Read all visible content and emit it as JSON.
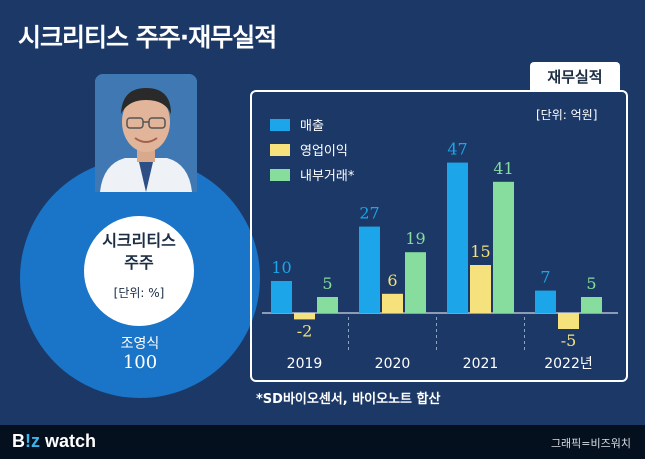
{
  "header": {
    "title": "시크리티스 주주·재무실적"
  },
  "shareholder": {
    "circle_title_line1": "시크리티스",
    "circle_title_line2": "주주",
    "circle_unit": "[단위: %]",
    "name": "조영식",
    "value": "100",
    "value_num": 100
  },
  "panel": {
    "tab_label": "재무실적",
    "unit_note": "[단위: 억원]"
  },
  "footnote": "*SD바이오센서, 바이오노트 합산",
  "footer": {
    "brand_b": "B",
    "brand_z": "!z",
    "brand_rest": " watch",
    "credit": "그래픽=비즈워치"
  },
  "colors": {
    "background": "#1c3867",
    "sales": "#1ca5e8",
    "op": "#f5e27c",
    "internal": "#86dd9d",
    "circle": "#1a74c7"
  },
  "chart_data": {
    "type": "bar",
    "title": "재무실적",
    "unit": "[단위: 억원]",
    "categories": [
      "2019",
      "2020",
      "2021",
      "2022년"
    ],
    "series": [
      {
        "name": "매출",
        "values": [
          10,
          27,
          47,
          7
        ],
        "color": "#1ca5e8"
      },
      {
        "name": "영업이익",
        "values": [
          -2,
          6,
          15,
          -5
        ],
        "color": "#f5e27c"
      },
      {
        "name": "내부거래*",
        "values": [
          5,
          19,
          41,
          5
        ],
        "color": "#86dd9d"
      }
    ],
    "legend": "top-left",
    "grid": false
  }
}
